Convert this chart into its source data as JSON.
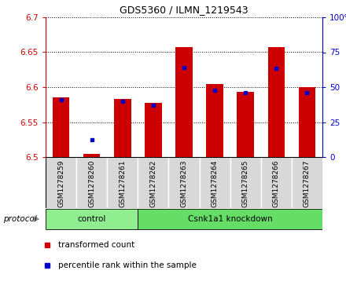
{
  "title": "GDS5360 / ILMN_1219543",
  "samples": [
    "GSM1278259",
    "GSM1278260",
    "GSM1278261",
    "GSM1278262",
    "GSM1278263",
    "GSM1278264",
    "GSM1278265",
    "GSM1278266",
    "GSM1278267"
  ],
  "transformed_count": [
    6.585,
    6.504,
    6.583,
    6.577,
    6.657,
    6.604,
    6.593,
    6.657,
    6.6
  ],
  "percentile_rank_left": [
    6.582,
    6.525,
    6.58,
    6.574,
    6.628,
    6.596,
    6.592,
    6.627,
    6.592
  ],
  "bar_base": 6.5,
  "ylim_left": [
    6.5,
    6.7
  ],
  "ylim_right": [
    0,
    100
  ],
  "yticks_left": [
    6.5,
    6.55,
    6.6,
    6.65,
    6.7
  ],
  "yticks_right": [
    0,
    25,
    50,
    75,
    100
  ],
  "ytick_labels_right": [
    "0",
    "25",
    "50",
    "75",
    "100%"
  ],
  "bar_color": "#CC0000",
  "dot_color": "#0000CC",
  "background_color": "#ffffff",
  "panel_color": "#d8d8d8",
  "left_axis_color": "#CC0000",
  "right_axis_color": "#0000CC",
  "protocol_groups": [
    {
      "label": "control",
      "n": 3,
      "color": "#90EE90"
    },
    {
      "label": "Csnk1a1 knockdown",
      "n": 6,
      "color": "#66DD66"
    }
  ],
  "legend_items": [
    "transformed count",
    "percentile rank within the sample"
  ],
  "legend_colors": [
    "#CC0000",
    "#0000CC"
  ],
  "protocol_label": "protocol",
  "bar_width": 0.55,
  "title_fontsize": 9,
  "tick_fontsize": 7.5,
  "label_fontsize": 8
}
